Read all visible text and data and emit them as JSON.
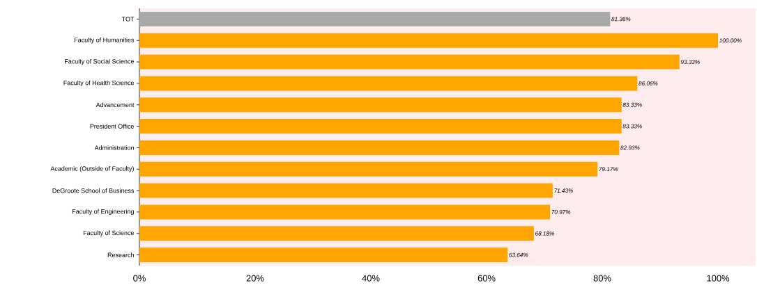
{
  "chart_data": {
    "type": "bar",
    "orientation": "horizontal",
    "categories": [
      "TOT",
      "Faculty of Humanities",
      "Faculty of Social Science",
      "Faculty of Health Science",
      "Advancement",
      "President Office",
      "Administration",
      "Academic (Outside of Faculty)",
      "DeGroote School of Business",
      "Faculty of Engineering",
      "Faculty of Science",
      "Research"
    ],
    "values": [
      81.36,
      100,
      93.33,
      86.06,
      83.33,
      83.33,
      82.93,
      79.17,
      71.43,
      70.97,
      68.18,
      63.64
    ],
    "colors": [
      "#a9a9a9",
      "#ffa500",
      "#ffa500",
      "#ffa500",
      "#ffa500",
      "#ffa500",
      "#ffa500",
      "#ffa500",
      "#ffa500",
      "#ffa500",
      "#ffa500",
      "#ffa500"
    ],
    "value_labels": [
      "81.36%",
      "100.00%",
      "93.33%",
      "86.06%",
      "83.33%",
      "83.33%",
      "82.93%",
      "79.17%",
      "71.43%",
      "70.97%",
      "68.18%",
      "63.64%"
    ],
    "xlim": [
      0,
      106.5
    ],
    "xticks": [
      {
        "value": 0,
        "label": "0%"
      },
      {
        "value": 20,
        "label": "20%"
      },
      {
        "value": 40,
        "label": "40%"
      },
      {
        "value": 60,
        "label": "60%"
      },
      {
        "value": 80,
        "label": "80%"
      },
      {
        "value": 100,
        "label": "100%"
      }
    ],
    "grid": false
  }
}
